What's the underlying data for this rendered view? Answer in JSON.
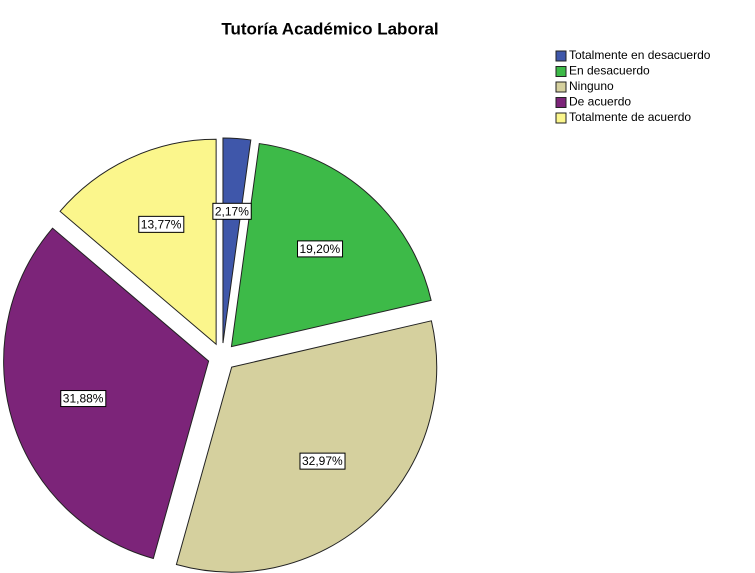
{
  "chart_data": {
    "type": "pie",
    "title": "Tutoría Académico Laboral",
    "categories": [
      "Totalmente en desacuerdo",
      "En desacuerdo",
      "Ninguno",
      "De acuerdo",
      "Totalmente de acuerdo"
    ],
    "values": [
      2.17,
      19.2,
      32.97,
      31.88,
      13.77
    ],
    "value_labels": [
      "2,17%",
      "19,20%",
      "32,97%",
      "31,88%",
      "13,77%"
    ],
    "colors": [
      "#3f57aa",
      "#3dba48",
      "#d5d09e",
      "#7c2479",
      "#fbf68c"
    ],
    "legend": "top-right"
  }
}
